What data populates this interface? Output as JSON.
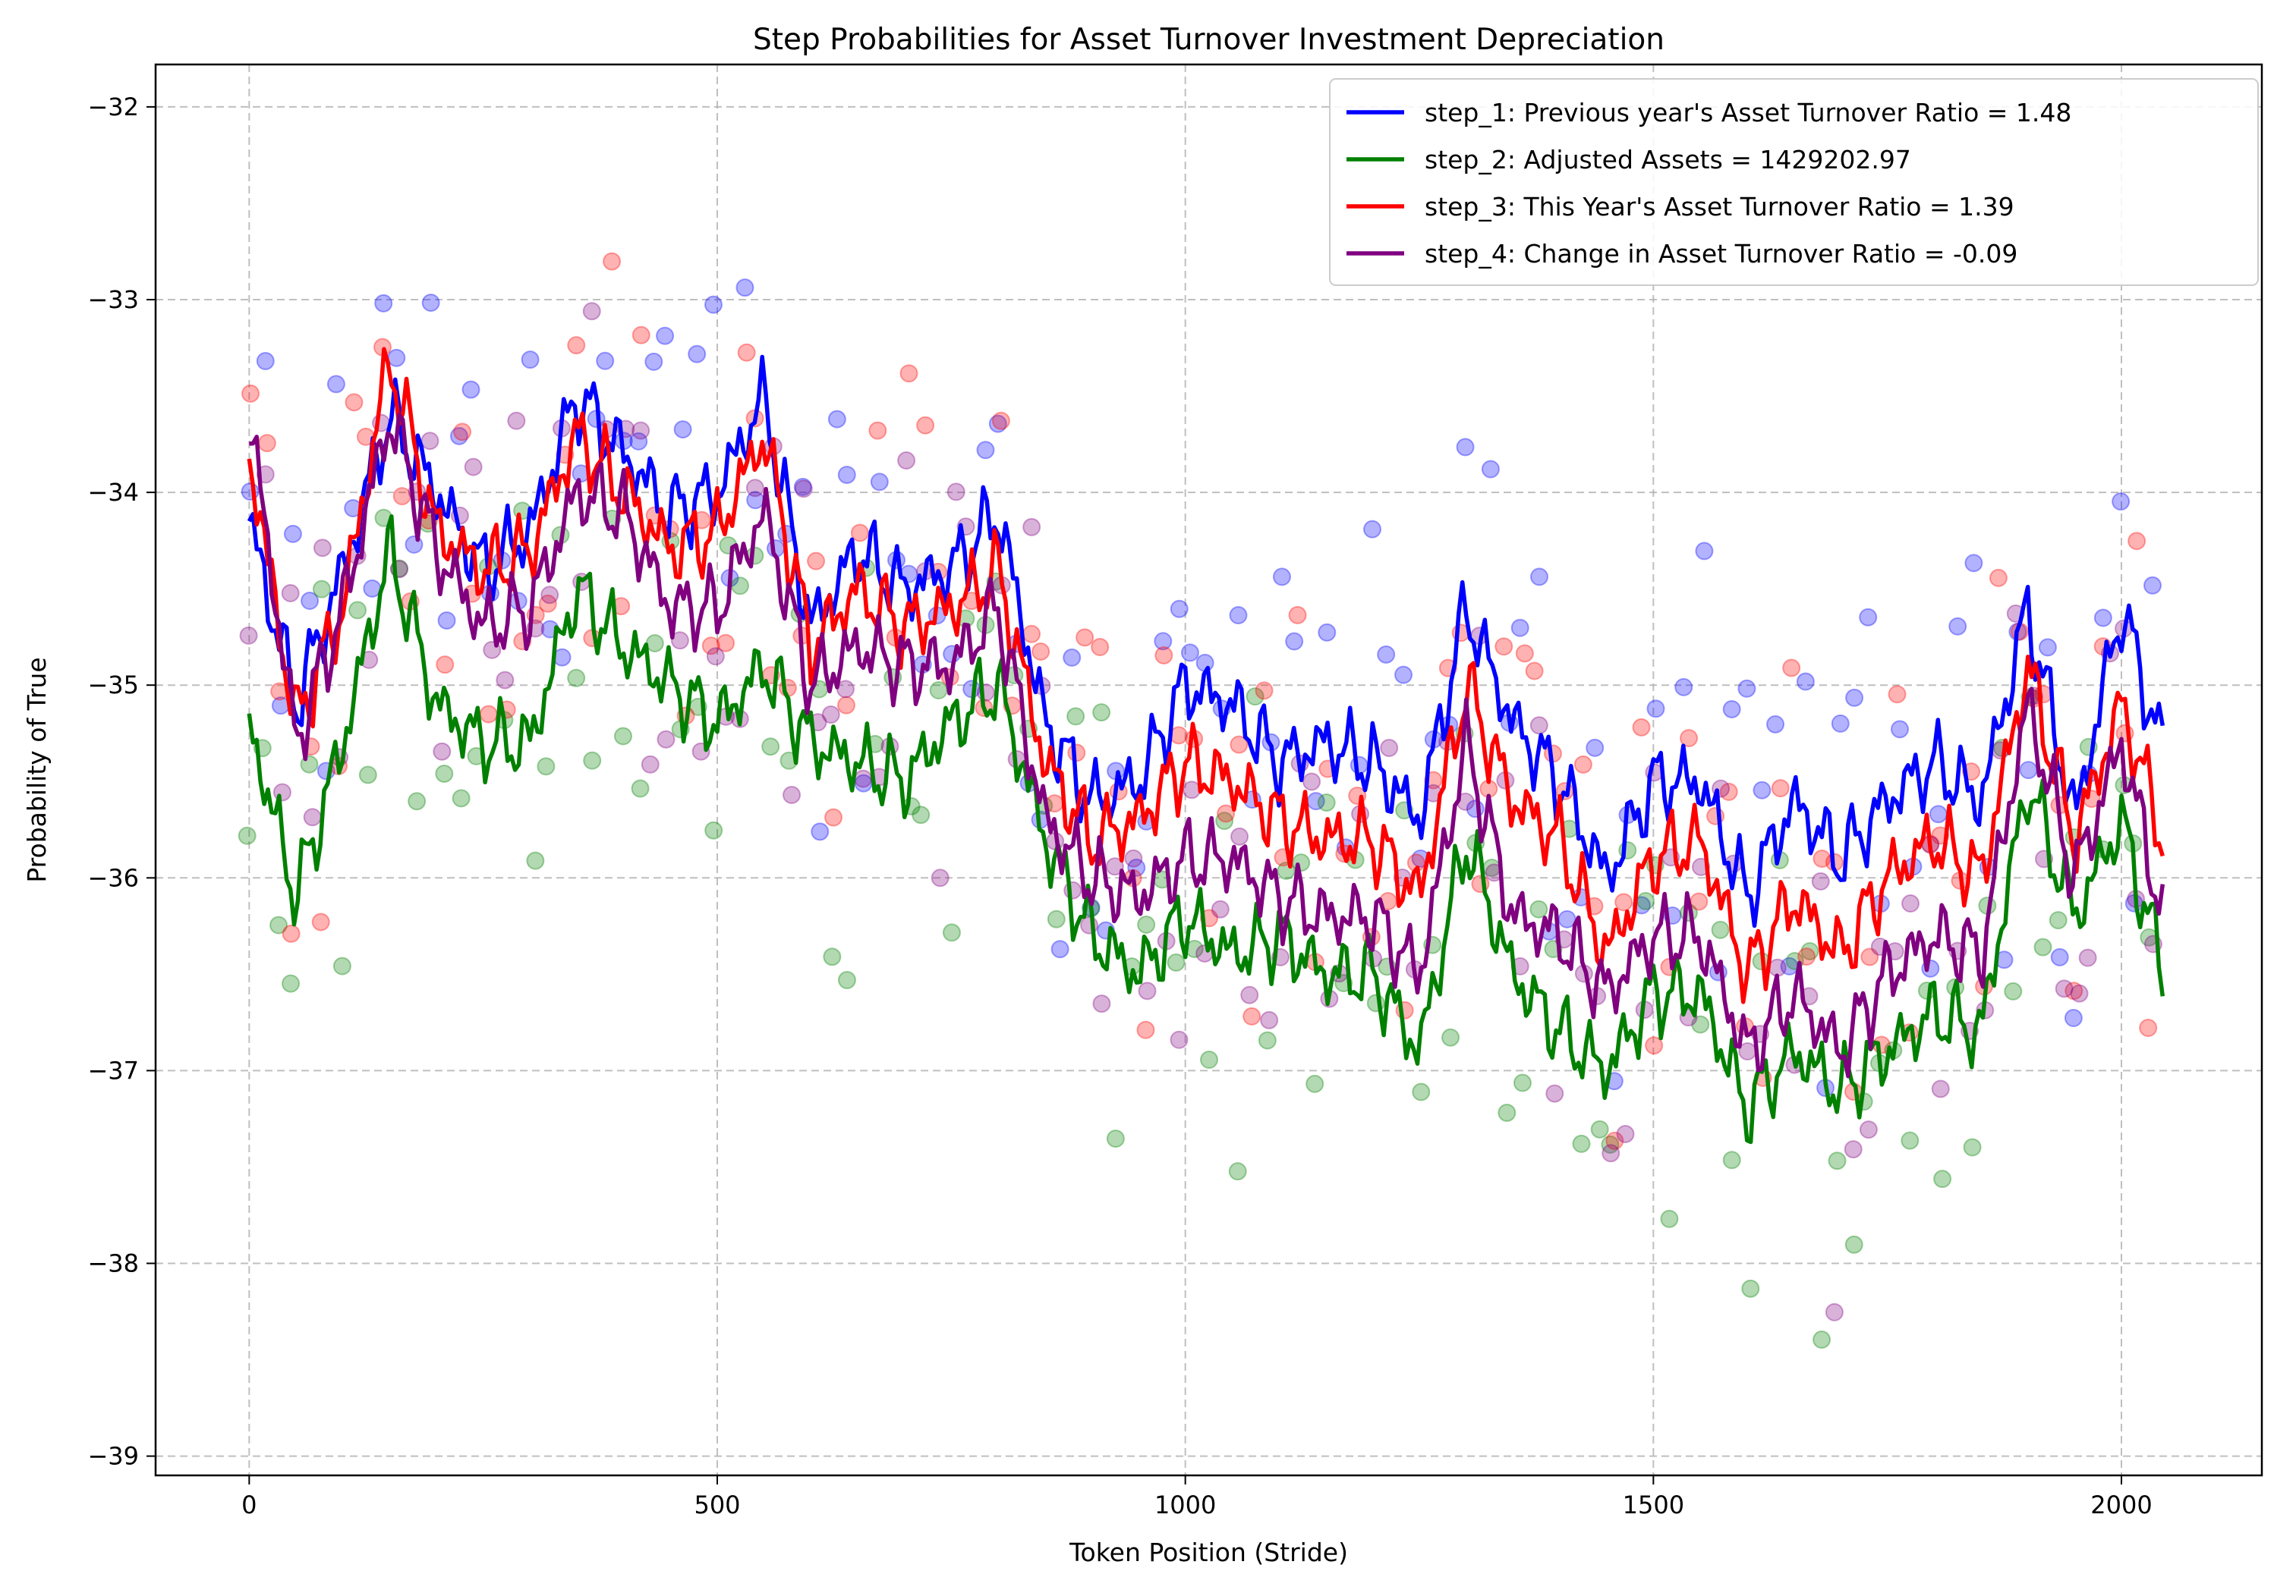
{
  "chart_data": {
    "type": "line",
    "title": "Step Probabilities for Asset Turnover Investment Depreciation",
    "xlabel": "Token Position (Stride)",
    "ylabel": "Probability of True",
    "xlim": [
      -100,
      2150
    ],
    "ylim": [
      -39.1,
      -31.78
    ],
    "x_ticks": [
      0,
      500,
      1000,
      1500,
      2000
    ],
    "y_ticks": [
      -39,
      -38,
      -37,
      -36,
      -35,
      -34,
      -33,
      -32
    ],
    "x_tick_labels": [
      "0",
      "500",
      "1000",
      "1500",
      "2000"
    ],
    "y_tick_labels": [
      "−39",
      "−38",
      "−37",
      "−36",
      "−35",
      "−34",
      "−33",
      "−32"
    ],
    "grid": true,
    "legend_position": "top-right",
    "series": [
      {
        "name": "step_1: Previous year's Asset Turnover Ratio = 1.48",
        "color": "#0000ff",
        "x": [
          0,
          50,
          100,
          150,
          200,
          250,
          300,
          350,
          400,
          450,
          500,
          550,
          600,
          650,
          700,
          750,
          800,
          850,
          900,
          950,
          1000,
          1050,
          1100,
          1150,
          1200,
          1250,
          1300,
          1350,
          1400,
          1450,
          1500,
          1550,
          1600,
          1650,
          1700,
          1750,
          1800,
          1850,
          1900,
          1950,
          2000,
          2045
        ],
        "y": [
          -34.15,
          -35.1,
          -34.4,
          -33.6,
          -34.0,
          -34.4,
          -34.2,
          -33.5,
          -33.8,
          -34.1,
          -34.0,
          -33.5,
          -34.7,
          -34.3,
          -34.5,
          -34.4,
          -34.1,
          -35.2,
          -35.6,
          -35.5,
          -35.0,
          -35.1,
          -35.4,
          -35.3,
          -35.4,
          -35.7,
          -34.6,
          -35.2,
          -35.5,
          -36.0,
          -35.5,
          -35.5,
          -36.1,
          -35.6,
          -35.9,
          -35.6,
          -35.4,
          -35.6,
          -34.6,
          -35.7,
          -34.6,
          -35.35
        ]
      },
      {
        "name": "step_2: Adjusted Assets = 1429202.97",
        "color": "#008000",
        "x": [
          0,
          50,
          100,
          150,
          200,
          250,
          300,
          350,
          400,
          450,
          500,
          550,
          600,
          650,
          700,
          750,
          800,
          850,
          900,
          950,
          1000,
          1050,
          1100,
          1150,
          1200,
          1250,
          1300,
          1350,
          1400,
          1450,
          1500,
          1550,
          1600,
          1650,
          1700,
          1750,
          1800,
          1850,
          1900,
          1950,
          2000,
          2045
        ],
        "y": [
          -35.2,
          -36.1,
          -35.3,
          -34.3,
          -35.1,
          -35.3,
          -35.3,
          -34.5,
          -34.8,
          -35.0,
          -35.2,
          -34.9,
          -35.3,
          -35.4,
          -35.5,
          -35.2,
          -35.0,
          -35.8,
          -36.3,
          -36.5,
          -36.2,
          -36.4,
          -36.3,
          -36.5,
          -36.5,
          -36.9,
          -35.8,
          -36.5,
          -36.8,
          -37.0,
          -36.6,
          -36.6,
          -37.2,
          -36.9,
          -37.1,
          -36.9,
          -36.7,
          -36.8,
          -35.5,
          -36.2,
          -35.7,
          -36.5
        ]
      },
      {
        "name": "step_3: This Year's Asset Turnover Ratio = 1.39",
        "color": "#ff0000",
        "x": [
          0,
          50,
          100,
          150,
          200,
          250,
          300,
          350,
          400,
          450,
          500,
          550,
          600,
          650,
          700,
          750,
          800,
          850,
          900,
          950,
          1000,
          1050,
          1100,
          1150,
          1200,
          1250,
          1300,
          1350,
          1400,
          1450,
          1500,
          1550,
          1600,
          1650,
          1700,
          1750,
          1800,
          1850,
          1900,
          1950,
          2000,
          2045
        ],
        "y": [
          -33.8,
          -35.2,
          -34.6,
          -33.3,
          -34.2,
          -34.4,
          -34.3,
          -33.7,
          -34.0,
          -34.3,
          -34.2,
          -33.7,
          -34.8,
          -34.5,
          -34.7,
          -34.6,
          -34.4,
          -35.4,
          -35.8,
          -35.7,
          -35.4,
          -35.5,
          -35.7,
          -35.8,
          -35.8,
          -36.1,
          -35.0,
          -35.6,
          -35.8,
          -36.4,
          -35.9,
          -35.8,
          -36.5,
          -36.1,
          -36.4,
          -36.0,
          -35.8,
          -36.0,
          -34.9,
          -35.8,
          -35.1,
          -35.8
        ]
      },
      {
        "name": "step_4: Change in Asset Turnover Ratio = -0.09",
        "color": "#800080",
        "x": [
          0,
          50,
          100,
          150,
          200,
          250,
          300,
          350,
          400,
          450,
          500,
          550,
          600,
          650,
          700,
          750,
          800,
          850,
          900,
          950,
          1000,
          1050,
          1100,
          1150,
          1200,
          1250,
          1300,
          1350,
          1400,
          1450,
          1500,
          1550,
          1600,
          1650,
          1700,
          1750,
          1800,
          1850,
          1900,
          1950,
          2000,
          2045
        ],
        "y": [
          -33.6,
          -35.3,
          -34.6,
          -33.6,
          -34.3,
          -34.7,
          -34.6,
          -34.0,
          -34.1,
          -34.6,
          -34.6,
          -34.1,
          -35.0,
          -34.8,
          -34.9,
          -34.9,
          -34.6,
          -35.7,
          -36.0,
          -36.1,
          -35.9,
          -35.9,
          -36.1,
          -36.2,
          -36.2,
          -36.5,
          -35.3,
          -36.2,
          -36.3,
          -36.6,
          -36.3,
          -36.3,
          -36.9,
          -36.6,
          -36.9,
          -36.5,
          -36.3,
          -36.4,
          -35.1,
          -36.0,
          -35.3,
          -36.2
        ]
      }
    ]
  }
}
